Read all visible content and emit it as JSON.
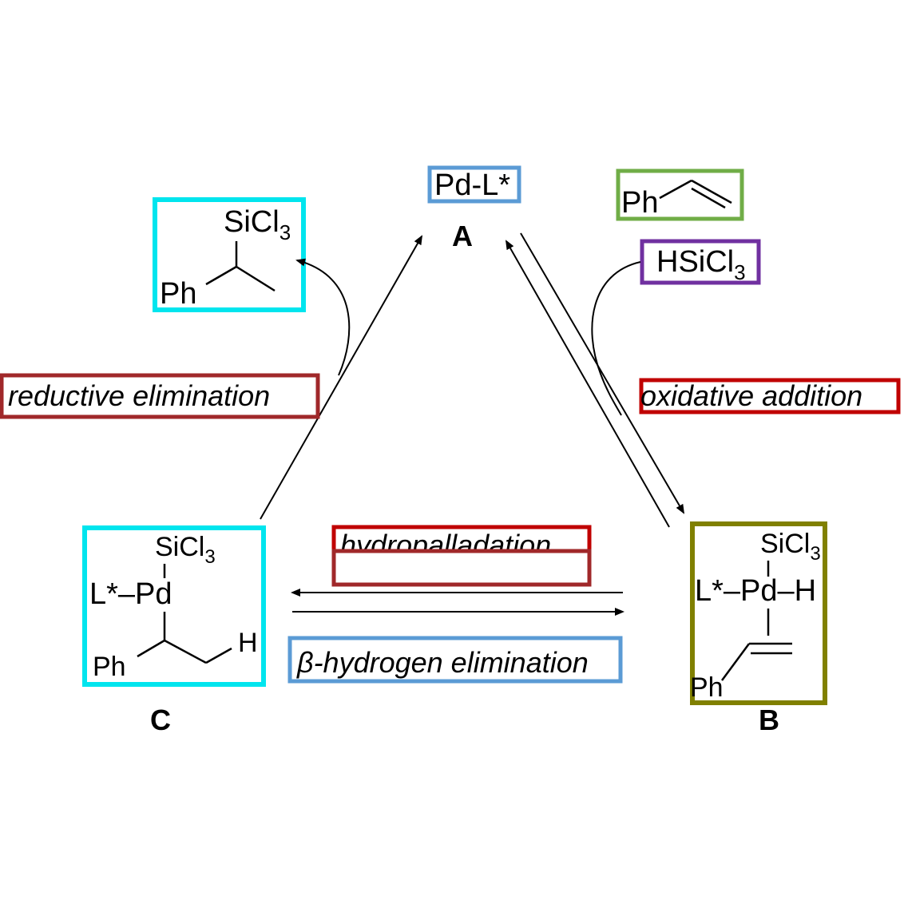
{
  "catalyst": {
    "formula": "Pd-L*",
    "label": "A",
    "color": "#5b9bd5"
  },
  "styrene": {
    "ph": "Ph",
    "color": "#70ad47"
  },
  "silane": {
    "formula_main": "HSiCl",
    "formula_sub": "3",
    "color": "#7030a0"
  },
  "product": {
    "si": "SiCl",
    "si_sub": "3",
    "ph": "Ph",
    "color": "#00e5ee"
  },
  "intermediate_b": {
    "si": "SiCl",
    "si_sub": "3",
    "lpd": "L*–Pd–H",
    "ph": "Ph",
    "label": "B",
    "color": "#808000"
  },
  "intermediate_c": {
    "si": "SiCl",
    "si_sub": "3",
    "lpd": "L*–Pd",
    "h": "H",
    "ph": "Ph",
    "label": "C",
    "color": "#00e5ee"
  },
  "steps": {
    "reductive": {
      "text": "reductive elimination",
      "color": "#a0282a"
    },
    "oxidative": {
      "text": "oxidative addition",
      "color": "#c00000"
    },
    "hydropalladation": {
      "text": "hydropalladation",
      "color": "#c00000",
      "box2_color": "#a0282a"
    },
    "beta_elim": {
      "text": "β-hydrogen elimination",
      "color": "#5b9bd5"
    }
  }
}
